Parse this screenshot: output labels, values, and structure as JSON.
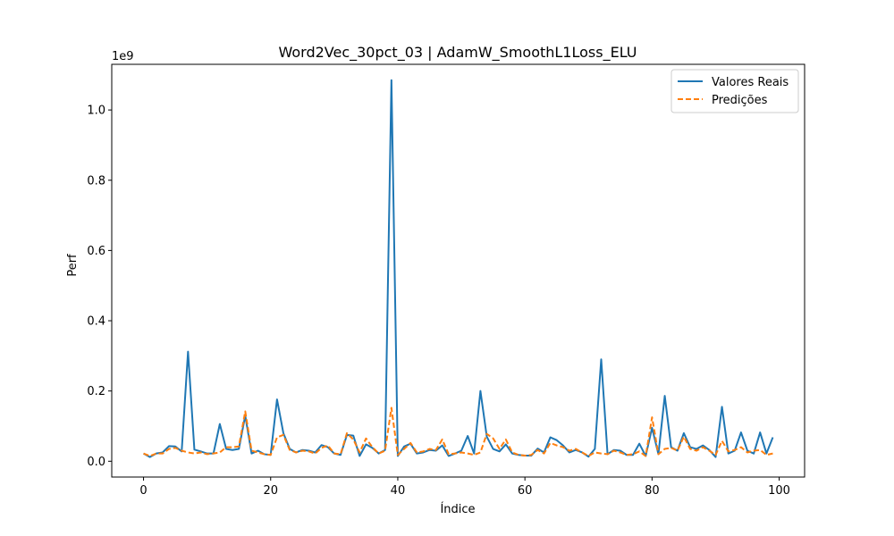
{
  "chart_data": {
    "type": "line",
    "title": "Word2Vec_30pct_03 | AdamW_SmoothL1Loss_ELU",
    "xlabel": "Índice",
    "ylabel": "Perf",
    "y_offset_label": "1e9",
    "xlim": [
      -5,
      104
    ],
    "ylim": [
      -0.045,
      1.13
    ],
    "x_ticks": [
      0,
      20,
      40,
      60,
      80,
      100
    ],
    "x_tick_labels": [
      "0",
      "20",
      "40",
      "60",
      "80",
      "100"
    ],
    "y_ticks": [
      0.0,
      0.2,
      0.4,
      0.6,
      0.8,
      1.0
    ],
    "y_tick_labels": [
      "0.0",
      "0.2",
      "0.4",
      "0.6",
      "0.8",
      "1.0"
    ],
    "grid": false,
    "legend_position": "top-right",
    "series": [
      {
        "name": "Valores Reais",
        "color": "#1f77b4",
        "style": "solid",
        "values": [
          0.022,
          0.012,
          0.022,
          0.025,
          0.043,
          0.042,
          0.028,
          0.312,
          0.033,
          0.028,
          0.022,
          0.022,
          0.106,
          0.035,
          0.032,
          0.035,
          0.13,
          0.022,
          0.03,
          0.02,
          0.018,
          0.176,
          0.08,
          0.035,
          0.025,
          0.032,
          0.03,
          0.025,
          0.046,
          0.04,
          0.022,
          0.018,
          0.075,
          0.073,
          0.015,
          0.048,
          0.038,
          0.022,
          0.032,
          1.085,
          0.015,
          0.042,
          0.05,
          0.022,
          0.025,
          0.032,
          0.03,
          0.045,
          0.015,
          0.022,
          0.03,
          0.072,
          0.022,
          0.2,
          0.07,
          0.035,
          0.028,
          0.048,
          0.022,
          0.018,
          0.016,
          0.016,
          0.036,
          0.025,
          0.068,
          0.06,
          0.045,
          0.025,
          0.032,
          0.025,
          0.013,
          0.035,
          0.29,
          0.02,
          0.032,
          0.03,
          0.018,
          0.018,
          0.05,
          0.015,
          0.095,
          0.02,
          0.186,
          0.04,
          0.03,
          0.08,
          0.04,
          0.035,
          0.045,
          0.032,
          0.012,
          0.155,
          0.022,
          0.03,
          0.082,
          0.03,
          0.022,
          0.082,
          0.022,
          0.068
        ]
      },
      {
        "name": "Predições",
        "color": "#ff7f0e",
        "style": "dashed",
        "values": [
          0.022,
          0.015,
          0.022,
          0.022,
          0.035,
          0.038,
          0.03,
          0.025,
          0.022,
          0.025,
          0.02,
          0.022,
          0.025,
          0.04,
          0.04,
          0.042,
          0.142,
          0.03,
          0.025,
          0.02,
          0.018,
          0.068,
          0.075,
          0.032,
          0.025,
          0.03,
          0.028,
          0.022,
          0.038,
          0.045,
          0.022,
          0.02,
          0.08,
          0.062,
          0.025,
          0.065,
          0.04,
          0.022,
          0.03,
          0.152,
          0.018,
          0.035,
          0.052,
          0.025,
          0.028,
          0.035,
          0.032,
          0.062,
          0.02,
          0.022,
          0.025,
          0.022,
          0.018,
          0.025,
          0.078,
          0.065,
          0.035,
          0.062,
          0.025,
          0.018,
          0.016,
          0.018,
          0.032,
          0.022,
          0.052,
          0.045,
          0.04,
          0.03,
          0.035,
          0.025,
          0.015,
          0.025,
          0.022,
          0.02,
          0.03,
          0.025,
          0.018,
          0.02,
          0.028,
          0.015,
          0.125,
          0.02,
          0.035,
          0.038,
          0.03,
          0.07,
          0.035,
          0.03,
          0.04,
          0.03,
          0.018,
          0.058,
          0.028,
          0.032,
          0.04,
          0.025,
          0.03,
          0.032,
          0.018,
          0.022
        ]
      }
    ]
  }
}
